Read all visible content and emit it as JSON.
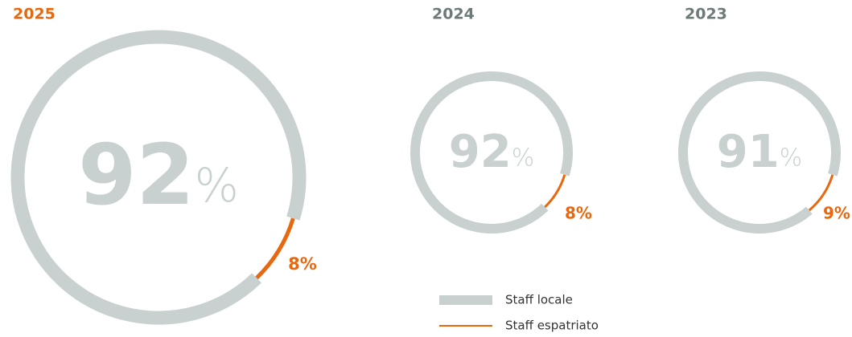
{
  "chart_data": [
    {
      "type": "donut",
      "title": "2025",
      "values": [
        92,
        8
      ],
      "value_labels": [
        null,
        "8%"
      ],
      "unit": "%"
    },
    {
      "type": "donut",
      "title": "2024",
      "values": [
        92,
        8
      ],
      "value_labels": [
        null,
        "8%"
      ],
      "unit": "%"
    },
    {
      "type": "donut",
      "title": "2023",
      "values": [
        91,
        9
      ],
      "value_labels": [
        null,
        "9%"
      ],
      "unit": "%"
    }
  ],
  "legend": {
    "items": [
      {
        "name": "Staff locale",
        "color": "#c8d0d0"
      },
      {
        "name": "Staff espatriato",
        "color": "#e8680f"
      }
    ]
  }
}
